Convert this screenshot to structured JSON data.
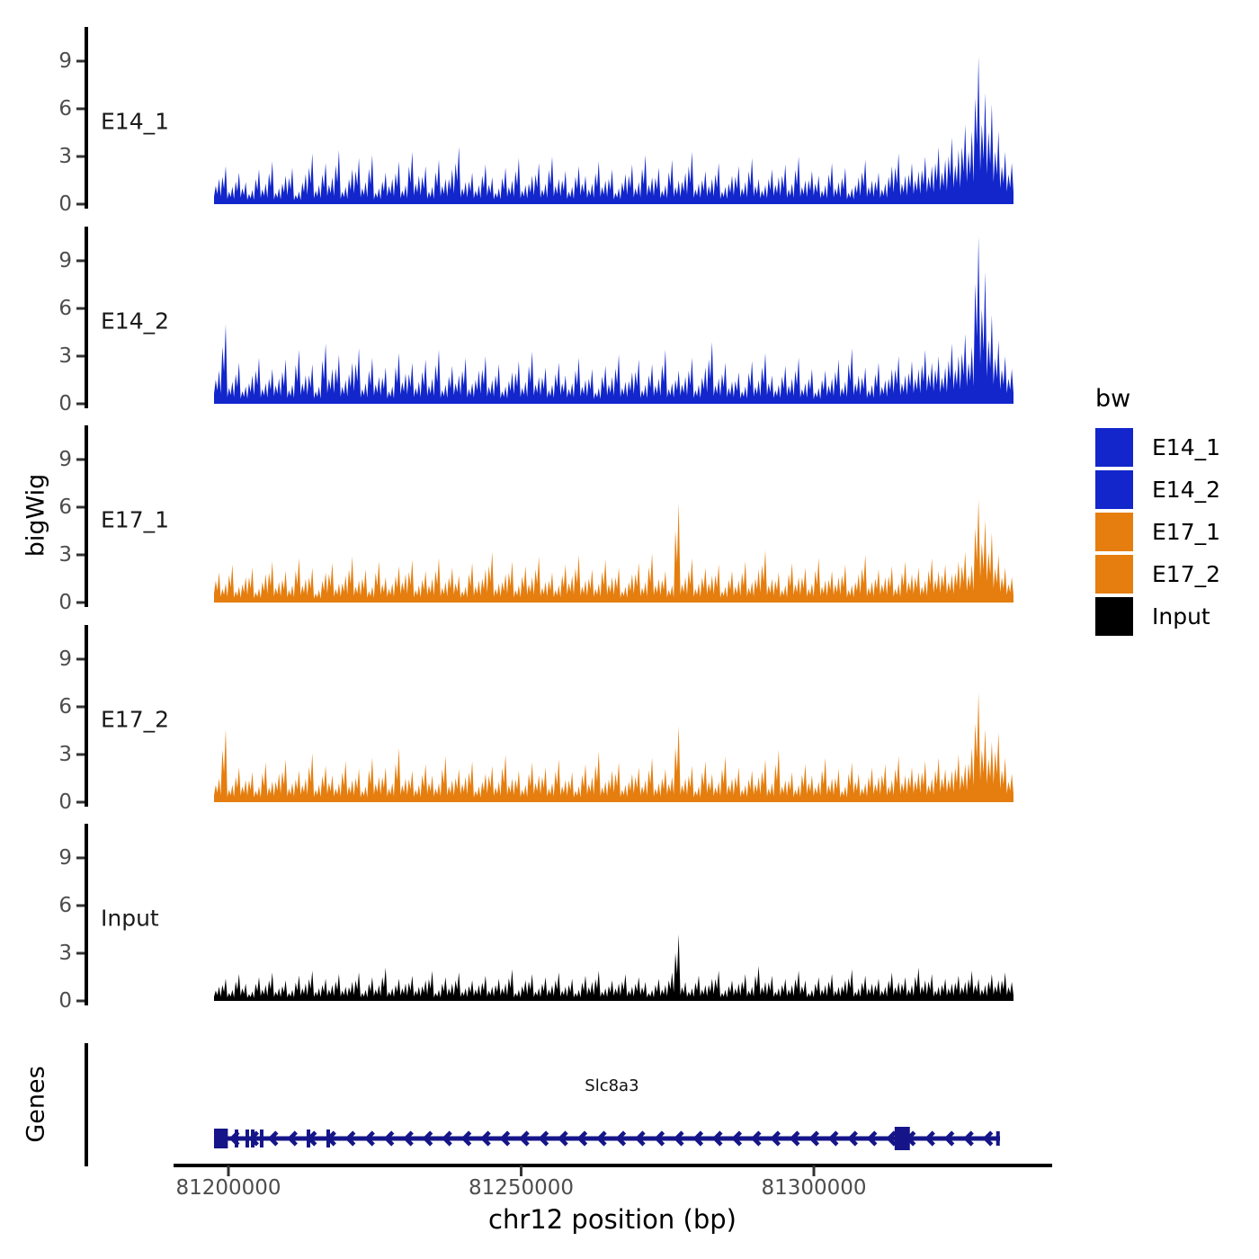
{
  "chart_data": {
    "type": "area",
    "title": "",
    "xlabel": "chr12 position (bp)",
    "ylabel": "bigWig",
    "genes_panel_label": "Genes",
    "y_ticks": [
      0,
      3,
      6,
      9
    ],
    "y_max_units": 11.2,
    "x_axis": {
      "tick_values": [
        81200000,
        81250000,
        81300000
      ],
      "tick_labels": [
        "81200000",
        "81250000",
        "81300000"
      ]
    },
    "region": {
      "chrom": "chr12",
      "start": 81197540,
      "end": 81334100
    },
    "colors": {
      "blue": "#1226CB",
      "orange": "#E57E0F",
      "black": "#000000",
      "gene": "#151589",
      "axis": "#000000",
      "tick_text": "#4d4d4d",
      "track_label_text": "#1a1a1a"
    },
    "tracks": [
      {
        "label": "E14_1",
        "color": "#1226CB",
        "values": [
          1.6,
          2.4,
          1.1,
          2.0,
          1.4,
          0.9,
          2.2,
          1.3,
          2.7,
          1.0,
          1.8,
          2.3,
          0.8,
          1.9,
          3.2,
          1.2,
          2.6,
          1.7,
          3.4,
          1.1,
          2.2,
          2.9,
          1.4,
          3.1,
          1.0,
          2.0,
          1.6,
          2.7,
          1.2,
          3.3,
          1.8,
          2.4,
          1.1,
          2.8,
          1.6,
          2.2,
          3.6,
          1.4,
          2.0,
          1.2,
          2.5,
          1.7,
          1.0,
          2.3,
          1.5,
          2.9,
          1.2,
          1.8,
          2.6,
          1.3,
          3.0,
          1.6,
          2.1,
          1.1,
          2.4,
          1.8,
          1.3,
          2.7,
          1.5,
          2.2,
          1.0,
          1.9,
          2.5,
          1.4,
          3.1,
          1.7,
          2.3,
          1.2,
          2.8,
          1.5,
          2.0,
          3.3,
          1.3,
          2.1,
          1.6,
          2.6,
          1.1,
          1.8,
          2.4,
          1.4,
          2.9,
          1.6,
          1.2,
          2.2,
          1.7,
          2.5,
          1.3,
          3.0,
          1.5,
          2.1,
          1.8,
          1.2,
          2.6,
          1.4,
          2.3,
          1.0,
          1.7,
          2.8,
          1.5,
          2.0,
          1.3,
          2.4,
          3.2,
          1.8,
          2.6,
          2.1,
          3.0,
          2.4,
          3.6,
          2.8,
          4.2,
          3.4,
          5.0,
          4.6,
          9.3,
          7.0,
          6.3,
          4.6,
          3.3,
          2.6
        ]
      },
      {
        "label": "E14_2",
        "color": "#1226CB",
        "values": [
          2.1,
          5.0,
          1.4,
          2.6,
          1.1,
          1.8,
          2.9,
          1.3,
          2.2,
          1.6,
          2.8,
          1.2,
          3.4,
          1.8,
          2.5,
          1.1,
          3.8,
          2.2,
          3.1,
          1.5,
          2.6,
          3.5,
          1.3,
          2.9,
          1.7,
          2.3,
          1.1,
          3.2,
          1.9,
          2.6,
          1.4,
          2.8,
          1.6,
          3.4,
          1.2,
          2.4,
          1.8,
          2.9,
          1.3,
          2.1,
          3.0,
          1.5,
          2.5,
          1.1,
          2.0,
          2.7,
          1.4,
          3.3,
          1.7,
          2.3,
          1.2,
          2.6,
          1.8,
          1.3,
          2.9,
          1.5,
          2.2,
          1.0,
          2.4,
          1.7,
          3.1,
          1.4,
          2.0,
          2.8,
          1.2,
          2.5,
          1.6,
          3.4,
          1.3,
          2.1,
          1.7,
          2.9,
          1.2,
          2.3,
          3.9,
          1.6,
          2.6,
          1.4,
          2.0,
          1.1,
          2.7,
          1.5,
          3.2,
          1.8,
          1.2,
          2.4,
          1.6,
          2.9,
          1.3,
          2.2,
          1.0,
          2.1,
          1.6,
          2.8,
          1.4,
          3.5,
          1.8,
          2.3,
          1.2,
          2.6,
          1.5,
          2.2,
          3.0,
          1.8,
          2.7,
          2.2,
          3.4,
          2.6,
          3.0,
          2.3,
          3.8,
          3.0,
          4.4,
          3.6,
          10.5,
          8.3,
          5.6,
          4.0,
          3.0,
          2.2
        ]
      },
      {
        "label": "E17_1",
        "color": "#E57E0F",
        "values": [
          1.9,
          1.2,
          2.4,
          1.0,
          1.6,
          2.2,
          0.9,
          1.8,
          2.6,
          1.3,
          2.0,
          1.1,
          2.8,
          1.5,
          2.2,
          0.8,
          1.9,
          2.5,
          1.2,
          1.7,
          2.9,
          1.4,
          2.1,
          1.0,
          2.6,
          1.6,
          1.2,
          2.3,
          1.8,
          2.7,
          1.1,
          2.0,
          1.5,
          2.8,
          1.3,
          2.2,
          1.7,
          1.0,
          2.5,
          1.4,
          2.1,
          3.2,
          1.2,
          1.8,
          2.6,
          1.1,
          2.3,
          1.6,
          2.9,
          1.3,
          1.9,
          1.1,
          2.4,
          1.7,
          3.0,
          1.4,
          2.1,
          1.2,
          2.7,
          1.6,
          2.2,
          1.0,
          1.8,
          2.5,
          1.3,
          3.1,
          1.5,
          2.0,
          1.1,
          6.3,
          1.6,
          2.8,
          1.2,
          2.2,
          1.7,
          2.4,
          1.0,
          2.0,
          1.4,
          2.6,
          1.3,
          2.1,
          3.3,
          1.5,
          1.9,
          1.1,
          2.5,
          1.6,
          2.2,
          1.2,
          2.8,
          1.4,
          2.0,
          1.6,
          2.4,
          1.1,
          1.8,
          3.0,
          1.3,
          2.1,
          1.6,
          2.3,
          1.2,
          2.6,
          1.8,
          2.2,
          1.4,
          2.8,
          2.0,
          2.4,
          1.8,
          2.6,
          3.2,
          2.4,
          6.5,
          5.2,
          4.4,
          3.0,
          2.2,
          1.6
        ]
      },
      {
        "label": "E17_2",
        "color": "#E57E0F",
        "values": [
          1.5,
          4.6,
          1.1,
          2.2,
          1.4,
          1.9,
          1.0,
          2.5,
          1.3,
          1.8,
          2.7,
          1.2,
          2.0,
          1.5,
          3.1,
          1.1,
          2.3,
          1.7,
          1.2,
          2.6,
          1.4,
          2.1,
          1.0,
          2.8,
          1.6,
          2.2,
          1.2,
          3.4,
          1.5,
          2.0,
          1.1,
          2.4,
          1.7,
          1.2,
          2.9,
          1.4,
          2.1,
          1.6,
          2.6,
          1.0,
          1.8,
          2.3,
          1.3,
          3.0,
          1.5,
          2.0,
          1.1,
          2.5,
          1.7,
          2.2,
          1.2,
          2.7,
          1.4,
          1.9,
          1.0,
          2.4,
          1.6,
          3.2,
          1.3,
          2.0,
          2.5,
          1.1,
          1.8,
          2.2,
          1.4,
          2.8,
          1.2,
          2.1,
          1.6,
          4.8,
          1.5,
          2.3,
          1.0,
          2.6,
          1.8,
          1.3,
          2.9,
          1.5,
          2.2,
          1.1,
          2.0,
          1.6,
          2.7,
          1.2,
          3.3,
          1.4,
          1.9,
          1.1,
          2.4,
          1.7,
          1.3,
          2.8,
          1.5,
          2.1,
          1.0,
          2.5,
          1.8,
          1.2,
          2.2,
          1.6,
          2.4,
          1.4,
          2.9,
          1.7,
          2.2,
          1.9,
          2.6,
          1.5,
          2.8,
          2.1,
          2.0,
          3.0,
          2.4,
          3.4,
          6.9,
          4.6,
          3.8,
          4.4,
          2.8,
          1.8
        ]
      },
      {
        "label": "Input",
        "color": "#000000",
        "values": [
          0.9,
          1.4,
          0.7,
          1.7,
          1.1,
          0.6,
          1.5,
          1.0,
          1.8,
          0.8,
          1.3,
          0.7,
          1.6,
          1.1,
          1.9,
          0.8,
          1.4,
          1.0,
          1.7,
          0.9,
          1.2,
          1.8,
          0.7,
          1.5,
          1.0,
          2.1,
          0.8,
          1.4,
          1.1,
          1.6,
          0.9,
          1.3,
          1.9,
          0.7,
          1.5,
          1.1,
          1.8,
          0.8,
          1.3,
          1.0,
          1.6,
          0.9,
          1.4,
          1.1,
          2.0,
          0.7,
          1.3,
          1.7,
          0.8,
          1.5,
          1.0,
          1.8,
          0.9,
          1.4,
          0.7,
          1.6,
          1.2,
          1.9,
          0.8,
          1.3,
          1.1,
          1.7,
          0.9,
          1.5,
          1.2,
          0.7,
          1.4,
          1.0,
          1.8,
          4.2,
          1.2,
          0.8,
          1.6,
          1.0,
          1.4,
          1.9,
          0.7,
          1.3,
          1.1,
          1.7,
          0.9,
          2.2,
          1.2,
          1.6,
          0.8,
          1.4,
          1.0,
          1.9,
          1.3,
          0.7,
          1.5,
          1.0,
          1.7,
          0.9,
          1.3,
          2.0,
          0.8,
          1.6,
          1.1,
          1.4,
          0.9,
          1.8,
          1.2,
          1.5,
          1.0,
          2.1,
          1.3,
          1.7,
          0.9,
          1.4,
          1.1,
          1.6,
          1.2,
          1.9,
          1.4,
          1.0,
          1.7,
          1.3,
          1.8,
          1.2
        ]
      }
    ],
    "gene": {
      "name": "Slc8a3",
      "strand": "-",
      "start": 81197540,
      "end": 81331800,
      "label_pos": 81265500,
      "boxes": [
        {
          "start": 81197540,
          "end": 81199900,
          "height": 22
        },
        {
          "start": 81313800,
          "end": 81316400,
          "height": 26
        }
      ],
      "exon_ticks": [
        81201380,
        81203225,
        81204150,
        81205680,
        81213670,
        81217050
      ],
      "end_bar": 81331450,
      "arrow_start": 81200600,
      "arrow_end": 81330200,
      "arrow_step": 3300
    },
    "legend": {
      "title": "bw",
      "entries": [
        {
          "label": "E14_1",
          "color": "#1226CB"
        },
        {
          "label": "E14_2",
          "color": "#1226CB"
        },
        {
          "label": "E17_1",
          "color": "#E57E0F"
        },
        {
          "label": "E17_2",
          "color": "#E57E0F"
        },
        {
          "label": "Input",
          "color": "#000000"
        }
      ],
      "position": "right"
    }
  }
}
